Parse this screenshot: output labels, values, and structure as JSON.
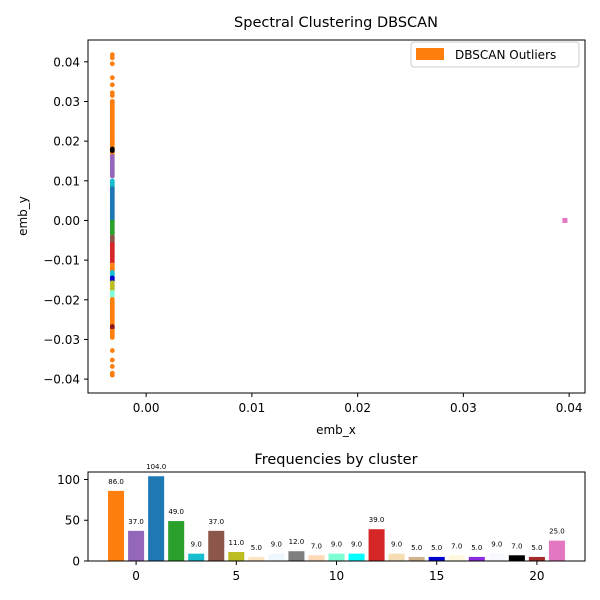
{
  "chart_data": [
    {
      "type": "scatter",
      "title": "Spectral Clustering DBSCAN",
      "xlabel": "emb_x",
      "ylabel": "emb_y",
      "xlim": [
        -0.0055,
        0.0415
      ],
      "ylim": [
        -0.0435,
        0.0455
      ],
      "xticks": [
        0.0,
        0.01,
        0.02,
        0.03,
        0.04
      ],
      "xtick_labels": [
        "0.00",
        "0.01",
        "0.02",
        "0.03",
        "0.04"
      ],
      "yticks": [
        -0.04,
        -0.03,
        -0.02,
        -0.01,
        0.0,
        0.01,
        0.02,
        0.03,
        0.04
      ],
      "ytick_labels": [
        "−0.04",
        "−0.03",
        "−0.02",
        "−0.01",
        "0.00",
        "0.01",
        "0.02",
        "0.03",
        "0.04"
      ],
      "grid": false,
      "legend": {
        "position": "top-right",
        "entries": [
          {
            "label": "DBSCAN Outliers",
            "color": "#ff7f0e"
          }
        ]
      },
      "column_x": -0.0032,
      "column_segments": [
        {
          "color": "#ff7f0e",
          "y_from": 0.0165,
          "y_to": 0.03
        },
        {
          "color": "#9467bd",
          "y_from": 0.0112,
          "y_to": 0.0162
        },
        {
          "color": "#000000",
          "y_from": 0.0176,
          "y_to": 0.018
        },
        {
          "color": "#17becf",
          "y_from": 0.0086,
          "y_to": 0.01
        },
        {
          "color": "#1f77b4",
          "y_from": 0.0,
          "y_to": 0.0082
        },
        {
          "color": "#2ca02c",
          "y_from": -0.0035,
          "y_to": 0.0
        },
        {
          "color": "#8c564b",
          "y_from": -0.006,
          "y_to": -0.004
        },
        {
          "color": "#d62728",
          "y_from": -0.0105,
          "y_to": -0.006
        },
        {
          "color": "#ff7f0e",
          "y_from": -0.013,
          "y_to": -0.0108
        },
        {
          "color": "#17becf",
          "y_from": -0.014,
          "y_to": -0.013
        },
        {
          "color": "#0000cd",
          "y_from": -0.015,
          "y_to": -0.0142
        },
        {
          "color": "#bcbd22",
          "y_from": -0.0175,
          "y_to": -0.0155
        },
        {
          "color": "#7fffd4",
          "y_from": -0.019,
          "y_to": -0.0178
        },
        {
          "color": "#ff7f0e",
          "y_from": -0.0262,
          "y_to": -0.0195
        },
        {
          "color": "#8b1a1a",
          "y_from": -0.0272,
          "y_to": -0.0264
        },
        {
          "color": "#ff7f0e",
          "y_from": -0.0295,
          "y_to": -0.0275
        }
      ],
      "column_points": [
        {
          "y": 0.0418,
          "color": "#ff7f0e"
        },
        {
          "y": 0.041,
          "color": "#ff7f0e"
        },
        {
          "y": 0.0395,
          "color": "#ff7f0e"
        },
        {
          "y": 0.036,
          "color": "#ff7f0e"
        },
        {
          "y": 0.0342,
          "color": "#ff7f0e"
        },
        {
          "y": 0.0322,
          "color": "#ff7f0e"
        },
        {
          "y": 0.0315,
          "color": "#ff7f0e"
        },
        {
          "y": 0.03,
          "color": "#ff7f0e"
        },
        {
          "y": 0.0212,
          "color": "#ff7f0e"
        },
        {
          "y": 0.018,
          "color": "#000000"
        },
        {
          "y": 0.0092,
          "color": "#17becf"
        },
        {
          "y": -0.0045,
          "color": "#8c564b"
        },
        {
          "y": -0.0145,
          "color": "#0000cd"
        },
        {
          "y": -0.0268,
          "color": "#8b1a1a"
        },
        {
          "y": -0.0328,
          "color": "#ff7f0e"
        },
        {
          "y": -0.0352,
          "color": "#ff7f0e"
        },
        {
          "y": -0.0368,
          "color": "#ff7f0e"
        },
        {
          "y": -0.0385,
          "color": "#ff7f0e"
        },
        {
          "y": -0.039,
          "color": "#ff7f0e"
        }
      ],
      "outlier_point": {
        "x": 0.0396,
        "y": 0.0,
        "color": "#e377c2"
      }
    },
    {
      "type": "bar",
      "title": "Frequencies by cluster",
      "xlim": [
        -2.4,
        22.4
      ],
      "ylim": [
        0,
        109.2
      ],
      "xticks": [
        0,
        5,
        10,
        15,
        20
      ],
      "xtick_labels": [
        "0",
        "5",
        "10",
        "15",
        "20"
      ],
      "yticks": [
        0,
        50,
        100
      ],
      "ytick_labels": [
        "0",
        "50",
        "100"
      ],
      "categories": [
        -1,
        0,
        1,
        2,
        3,
        4,
        5,
        6,
        7,
        8,
        9,
        10,
        11,
        12,
        13,
        14,
        15,
        16,
        17,
        18,
        19,
        20,
        21
      ],
      "values": [
        86,
        37,
        104,
        49,
        9,
        37,
        11,
        5,
        9,
        12,
        7,
        9,
        9,
        39,
        9,
        5,
        5,
        7,
        5,
        9,
        7,
        5,
        25
      ],
      "value_labels": [
        "86.0",
        "37.0",
        "104.0",
        "49.0",
        "9.0",
        "37.0",
        "11.0",
        "5.0",
        "9.0",
        "12.0",
        "7.0",
        "9.0",
        "9.0",
        "39.0",
        "9.0",
        "5.0",
        "5.0",
        "7.0",
        "5.0",
        "9.0",
        "7.0",
        "5.0",
        "25.0"
      ],
      "colors": [
        "#ff7f0e",
        "#9467bd",
        "#1f77b4",
        "#2ca02c",
        "#17becf",
        "#8c564b",
        "#bcbd22",
        "#ffe4c4",
        "#f0f8ff",
        "#7f7f7f",
        "#ffdab9",
        "#7fffd4",
        "#00ffff",
        "#d62728",
        "#f5deb3",
        "#d2b48c",
        "#0000cd",
        "#fff8dc",
        "#8a2be2",
        "#f8f8ff",
        "#000000",
        "#a52a2a",
        "#e377c2"
      ]
    }
  ]
}
